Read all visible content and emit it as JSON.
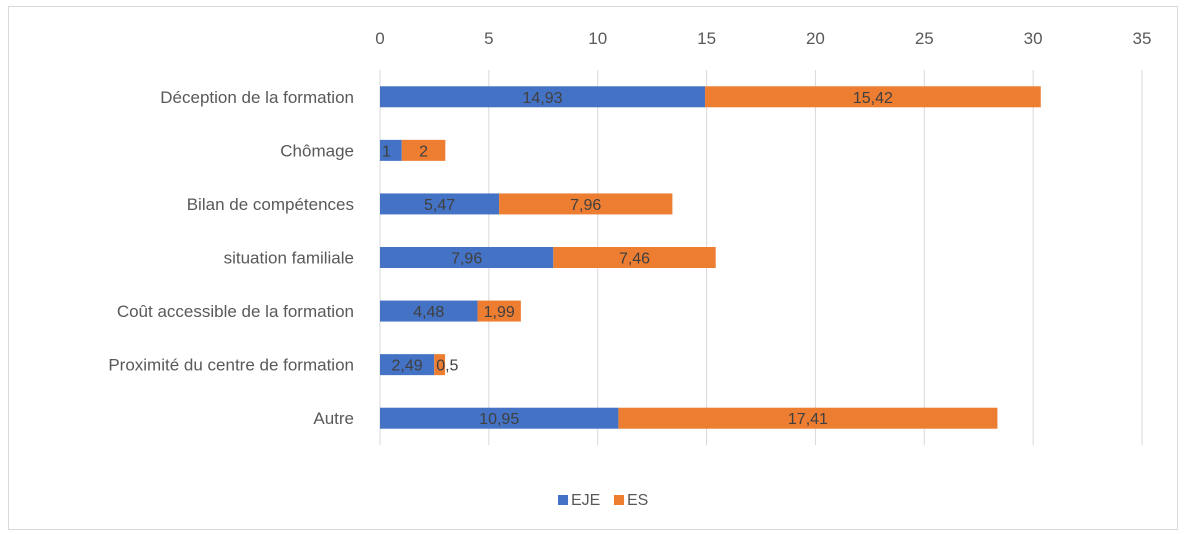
{
  "chart_data": {
    "type": "bar",
    "orientation": "horizontal",
    "stacked": true,
    "categories": [
      "Déception de la formation",
      "Chômage",
      "Bilan de compétences",
      "situation familiale",
      "Coût accessible de la formation",
      "Proximité du centre de formation",
      "Autre"
    ],
    "series": [
      {
        "name": "EJE",
        "color": "#4472C4",
        "values": [
          14.93,
          1,
          5.47,
          7.96,
          4.48,
          2.49,
          10.95
        ],
        "labels": [
          "14,93",
          "1",
          "5,47",
          "7,96",
          "4,48",
          "2,49",
          "10,95"
        ]
      },
      {
        "name": "ES",
        "color": "#ED7D31",
        "values": [
          15.42,
          2,
          7.96,
          7.46,
          1.99,
          0.5,
          17.41
        ],
        "labels": [
          "15,42",
          "2",
          "7,96",
          "7,46",
          "1,99",
          "0,5",
          "17,41"
        ]
      }
    ],
    "xlim": [
      0,
      35
    ],
    "xticks": [
      0,
      5,
      10,
      15,
      20,
      25,
      30,
      35
    ],
    "xtick_labels": [
      "0",
      "5",
      "10",
      "15",
      "20",
      "25",
      "30",
      "35"
    ],
    "axis_position": "top",
    "grid": true,
    "legend": "bottom",
    "title": "",
    "xlabel": "",
    "ylabel": ""
  }
}
